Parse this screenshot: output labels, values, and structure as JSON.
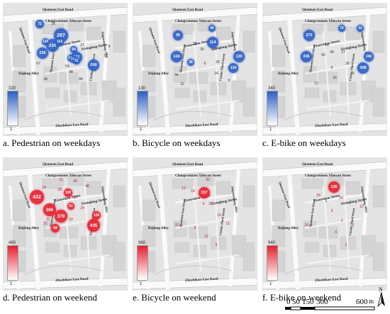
{
  "streets": {
    "qianmen": "Qianmen East Road",
    "chongwenmen": "Chongwenmen Xiheyan Street",
    "xianyukou": "Xianyukou Street",
    "xixinglong": "Xixinglong Street",
    "dajiang": "Dajiang Alley",
    "qianmen_v": "Qianmen East Street",
    "zhushikou": "Zhushikou East Road",
    "third": "Cuizhu Third Street",
    "yuanjiang": "Jingyuanjiang Alley",
    "left_road": "Qianmen East Road"
  },
  "panels": [
    {
      "id": "a",
      "caption": "a. Pedestrian on weekdays",
      "mode": "blue",
      "legend_max": "320",
      "legend_min": "1",
      "bubbles": [
        [
          "297",
          82,
          46,
          10
        ],
        [
          "236",
          70,
          60,
          9
        ],
        [
          "211",
          104,
          77,
          8
        ],
        [
          "226",
          56,
          71,
          8
        ],
        [
          "200",
          128,
          88,
          8
        ],
        [
          "72",
          52,
          30,
          6
        ],
        [
          "164",
          80,
          55,
          6
        ],
        [
          "130",
          60,
          55,
          5
        ],
        [
          "146",
          96,
          78,
          5
        ],
        [
          "184",
          100,
          80,
          5
        ],
        [
          "64",
          100,
          66,
          5
        ],
        [
          "52",
          104,
          82,
          5
        ]
      ],
      "nums": [
        [
          "9",
          150,
          62
        ],
        [
          "14",
          128,
          96
        ],
        [
          "67",
          50,
          86
        ],
        [
          "54",
          91,
          90
        ],
        [
          "34",
          60,
          108
        ],
        [
          "84",
          110,
          108
        ],
        [
          "12",
          145,
          75
        ],
        [
          "27",
          112,
          60
        ],
        [
          "48",
          96,
          98
        ],
        [
          "26",
          71,
          30
        ]
      ]
    },
    {
      "id": "b",
      "caption": "b. Bicycle on weekdays",
      "mode": "blue",
      "legend_max": "130",
      "legend_min": "1",
      "bubbles": [
        [
          "114",
          113,
          56,
          8
        ],
        [
          "96",
          64,
          46,
          7
        ],
        [
          "124",
          62,
          76,
          8
        ],
        [
          "120",
          150,
          76,
          8
        ],
        [
          "124",
          142,
          92,
          7
        ],
        [
          "38",
          82,
          84,
          5
        ],
        [
          "46",
          112,
          36,
          5
        ]
      ],
      "nums": [
        [
          "18",
          88,
          58
        ],
        [
          "36",
          98,
          66
        ],
        [
          "27",
          116,
          66
        ],
        [
          "26",
          120,
          84
        ],
        [
          "24",
          118,
          100
        ],
        [
          "44",
          62,
          102
        ],
        [
          "32",
          70,
          115
        ],
        [
          "6",
          102,
          86
        ],
        [
          "9",
          136,
          110
        ]
      ]
    },
    {
      "id": "c",
      "caption": "c. E-bike on weekdays",
      "mode": "blue",
      "legend_max": "340",
      "legend_min": "1",
      "bubbles": [
        [
          "272",
          66,
          46,
          8
        ],
        [
          "336",
          62,
          76,
          8
        ],
        [
          "240",
          150,
          76,
          7
        ],
        [
          "308",
          142,
          92,
          8
        ],
        [
          "76",
          112,
          36,
          5
        ],
        [
          "52",
          138,
          36,
          5
        ]
      ],
      "nums": [
        [
          "18",
          91,
          60
        ],
        [
          "49",
          98,
          70
        ],
        [
          "27",
          114,
          70
        ],
        [
          "36",
          120,
          86
        ],
        [
          "9",
          128,
          100
        ],
        [
          "12",
          76,
          114
        ],
        [
          "6",
          98,
          92
        ],
        [
          "66",
          86,
          74
        ],
        [
          "16",
          102,
          106
        ]
      ]
    },
    {
      "id": "d",
      "caption": "d. Pedestrian on weekend",
      "mode": "red",
      "legend_max": "480",
      "legend_min": "1",
      "bubbles": [
        [
          "432",
          48,
          56,
          10
        ],
        [
          "396",
          66,
          74,
          9
        ],
        [
          "379",
          82,
          83,
          9
        ],
        [
          "435",
          128,
          96,
          9
        ],
        [
          "120",
          132,
          82,
          6
        ],
        [
          "199",
          92,
          50,
          6
        ],
        [
          "84",
          74,
          100,
          6
        ],
        [
          "61",
          96,
          69,
          5
        ]
      ],
      "nums": [
        [
          "21",
          82,
          32
        ],
        [
          "45",
          102,
          34
        ],
        [
          "48",
          119,
          41
        ],
        [
          "28",
          80,
          46
        ],
        [
          "24",
          58,
          43
        ],
        [
          "31",
          64,
          88
        ],
        [
          "24",
          112,
          72
        ],
        [
          "33",
          96,
          88
        ],
        [
          "87",
          103,
          57
        ],
        [
          "21",
          60,
          94
        ]
      ]
    },
    {
      "id": "e",
      "caption": "e. Bicycle on weekend",
      "mode": "red",
      "legend_max": "960",
      "legend_min": "1",
      "bubbles": [
        [
          "157",
          101,
          50,
          8
        ]
      ],
      "nums": [
        [
          "33",
          106,
          32
        ],
        [
          "12",
          72,
          44
        ],
        [
          "18",
          85,
          48
        ],
        [
          "9",
          100,
          66
        ],
        [
          "33",
          110,
          66
        ],
        [
          "33",
          62,
          96
        ],
        [
          "16",
          122,
          82
        ],
        [
          "3",
          88,
          100
        ],
        [
          "12",
          134,
          94
        ],
        [
          "12",
          104,
          112
        ],
        [
          "9",
          118,
          124
        ]
      ]
    },
    {
      "id": "f",
      "caption": "f. E-bike on weekend",
      "mode": "red",
      "legend_max": "940",
      "legend_min": "1",
      "bubbles": [
        [
          "135",
          101,
          42,
          8
        ]
      ],
      "nums": [
        [
          "18",
          79,
          54
        ],
        [
          "6",
          90,
          62
        ],
        [
          "24",
          111,
          58
        ],
        [
          "3",
          98,
          76
        ],
        [
          "3",
          112,
          90
        ],
        [
          "24",
          62,
          96
        ],
        [
          "3",
          128,
          96
        ],
        [
          "6",
          104,
          106
        ],
        [
          "3",
          118,
          124
        ],
        [
          "12",
          140,
          70
        ]
      ]
    }
  ],
  "scale": {
    "labels": [
      "0",
      "50",
      "150",
      "300",
      "600"
    ],
    "unit": "m"
  },
  "north": {
    "label": "N"
  },
  "colors": {
    "blue": "#2b5fc4",
    "red": "#e6202e",
    "road": "#cccccc",
    "block": "#d4d4d4"
  }
}
